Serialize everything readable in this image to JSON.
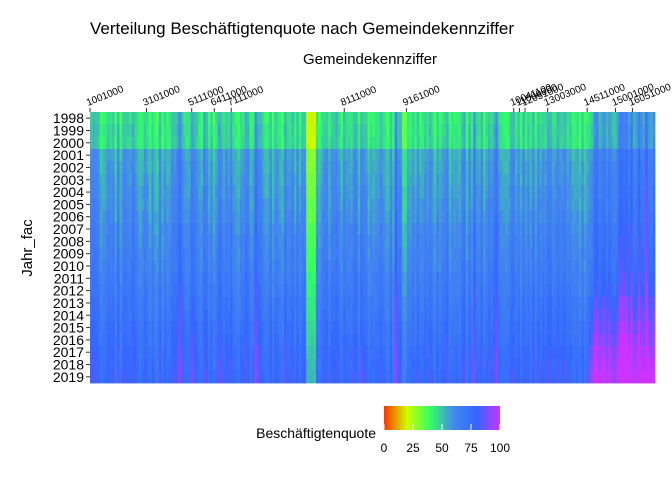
{
  "chart_data": {
    "type": "heatmap",
    "title": "Verteilung Beschäftigtenquote nach Gemeindekennziffer",
    "xlabel": "Gemeindekennziffer",
    "ylabel": "Jahr_fac",
    "x_axis_position": "top",
    "x_tick_labels": [
      "1001000",
      "3101000",
      "5111000",
      "6411000",
      "7111000",
      "8111000",
      "9161000",
      "10041100",
      "11000000",
      "12051000",
      "13003000",
      "14511000",
      "15001000",
      "16051000"
    ],
    "years": [
      "1998",
      "1999",
      "2000",
      "2001",
      "2002",
      "2003",
      "2004",
      "2005",
      "2006",
      "2007",
      "2008",
      "2009",
      "2010",
      "2011",
      "2012",
      "2013",
      "2014",
      "2015",
      "2016",
      "2017",
      "2018",
      "2019"
    ],
    "legend": {
      "title": "Beschäftigtenquote",
      "position": "bottom",
      "ticks": [
        "0",
        "25",
        "50",
        "75",
        "100"
      ],
      "range": [
        0,
        100
      ],
      "colors": [
        "#ff3300",
        "#ccff00",
        "#33ff66",
        "#4488ee",
        "#3366ff",
        "#cc33ff"
      ]
    },
    "approximate_values_by_year": {
      "1998": 45,
      "1999": 46,
      "2000": 46,
      "2001": 55,
      "2002": 56,
      "2003": 57,
      "2004": 58,
      "2005": 59,
      "2006": 60,
      "2007": 62,
      "2008": 63,
      "2009": 64,
      "2010": 65,
      "2011": 67,
      "2012": 68,
      "2013": 70,
      "2014": 71,
      "2015": 73,
      "2016": 74,
      "2017": 76,
      "2018": 77,
      "2019": 78
    },
    "grid": false
  }
}
